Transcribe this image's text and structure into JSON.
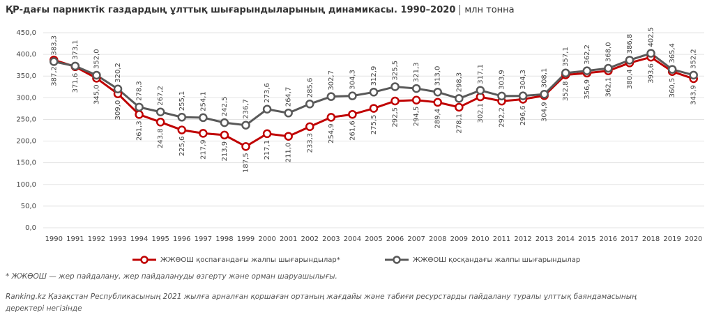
{
  "chart_data": {
    "type": "line",
    "title": "ҚР-дағы парниктік газдардың ұлттық шығарындыларының динамикасы. 1990–2020",
    "unit": "млн тонна",
    "categories": [
      "1990",
      "1991",
      "1992",
      "1993",
      "1994",
      "1995",
      "1996",
      "1997",
      "1998",
      "1999",
      "2000",
      "2001",
      "2002",
      "2003",
      "2004",
      "2005",
      "2006",
      "2007",
      "2008",
      "2009",
      "2010",
      "2011",
      "2012",
      "2013",
      "2014",
      "2015",
      "2016",
      "2017",
      "2018",
      "2019",
      "2020"
    ],
    "series": [
      {
        "name": "ЖЖӨОШ қоспағандағы жалпы шығарындылар*",
        "color": "#c00000",
        "values": [
          387.2,
          371.6,
          345.0,
          309.0,
          261.3,
          243.8,
          225.6,
          217.9,
          213.9,
          187.5,
          217.1,
          211.0,
          233.3,
          254.9,
          261.6,
          275.5,
          292.5,
          294.5,
          289.4,
          278.1,
          302.1,
          292.2,
          296.6,
          304.9,
          352.8,
          356.9,
          362.1,
          380.4,
          393.6,
          360.5,
          343.9
        ],
        "value_labels": [
          "387,2",
          "371,6",
          "345,0",
          "309,0",
          "261,3",
          "243,8",
          "225,6",
          "217,9",
          "213,9",
          "187,5",
          "217,1",
          "211,0",
          "233,3",
          "254,9",
          "261,6",
          "275,5",
          "292,5",
          "294,5",
          "289,4",
          "278,1",
          "302,1",
          "292,2",
          "296,6",
          "304,9",
          "352,8",
          "356,9",
          "362,1",
          "380,4",
          "393,6",
          "360,5",
          "343,9"
        ]
      },
      {
        "name": "ЖЖӨОШ қосқандағы жалпы шығарындылар",
        "color": "#595959",
        "values": [
          383.3,
          373.1,
          352.0,
          320.2,
          278.3,
          267.2,
          255.1,
          254.1,
          242.5,
          236.7,
          273.6,
          264.7,
          285.6,
          302.7,
          304.3,
          312.9,
          325.5,
          321.3,
          313.0,
          298.3,
          317.1,
          303.9,
          304.3,
          308.1,
          357.1,
          362.2,
          368.0,
          386.8,
          402.5,
          365.4,
          352.2
        ],
        "value_labels": [
          "383,3",
          "373,1",
          "352,0",
          "320,2",
          "278,3",
          "267,2",
          "255,1",
          "254,1",
          "242,5",
          "236,7",
          "273,6",
          "264,7",
          "285,6",
          "302,7",
          "304,3",
          "312,9",
          "325,5",
          "321,3",
          "313,0",
          "298,3",
          "317,1",
          "303,9",
          "304,3",
          "308,1",
          "357,1",
          "362,2",
          "368,0",
          "386,8",
          "402,5",
          "365,4",
          "352,2"
        ]
      }
    ],
    "ylim": [
      0,
      450
    ],
    "yticks": [
      {
        "value": 0,
        "label": "0,0"
      },
      {
        "value": 50,
        "label": "50,0"
      },
      {
        "value": 100,
        "label": "100,0"
      },
      {
        "value": 150,
        "label": "150,0"
      },
      {
        "value": 200,
        "label": "200,0"
      },
      {
        "value": 250,
        "label": "250,0"
      },
      {
        "value": 300,
        "label": "300,0"
      },
      {
        "value": 350,
        "label": "350,0"
      },
      {
        "value": 400,
        "label": "400,0"
      },
      {
        "value": 450,
        "label": "450,0"
      }
    ],
    "grid": true,
    "legend": "bottom",
    "footnote": "* ЖЖӨОШ — жер пайдалану, жер пайдалануды өзгерту және орман шаруашылығы.",
    "source": "Ranking.kz Қазақстан Республикасының 2021 жылға арналған қоршаған ортаның жағдайы және табиғи ресурстарды пайдалану туралы ұлттық баяндамасының деректері негізінде"
  }
}
